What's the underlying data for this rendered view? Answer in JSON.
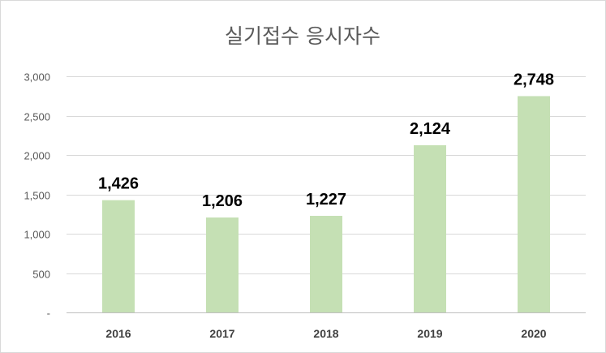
{
  "chart_data": {
    "type": "bar",
    "title": "실기접수 응시자수",
    "xlabel": "",
    "ylabel": "",
    "categories": [
      "2016",
      "2017",
      "2018",
      "2019",
      "2020"
    ],
    "values": [
      1426,
      1206,
      1227,
      2124,
      2748
    ],
    "data_labels": [
      "1,426",
      "1,206",
      "1,227",
      "2,124",
      "2,748"
    ],
    "ylim": [
      0,
      3000
    ],
    "yticks": [
      0,
      500,
      1000,
      1500,
      2000,
      2500,
      3000
    ],
    "ytick_labels": [
      "-",
      "500",
      "1,000",
      "1,500",
      "2,000",
      "2,500",
      "3,000"
    ],
    "grid": true,
    "legend": "none",
    "bar_color": "#c5e0b4"
  }
}
